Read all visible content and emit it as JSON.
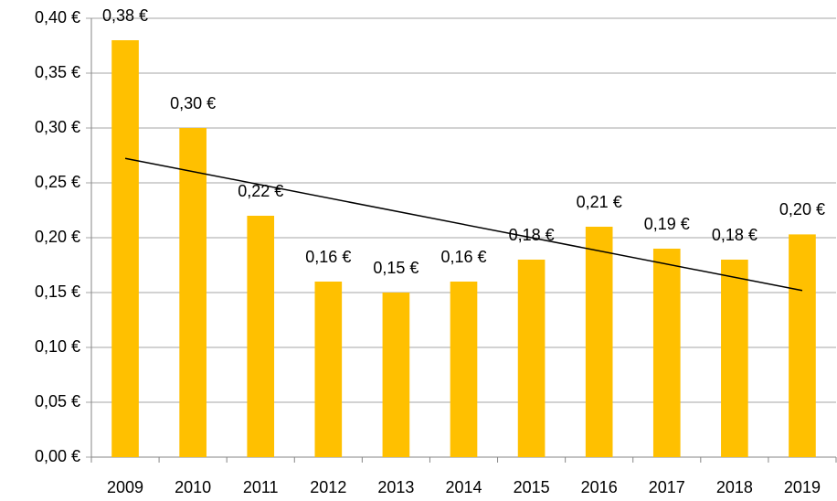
{
  "chart_data": {
    "type": "bar",
    "categories": [
      "2009",
      "2010",
      "2011",
      "2012",
      "2013",
      "2014",
      "2015",
      "2016",
      "2017",
      "2018",
      "2019"
    ],
    "values": [
      0.38,
      0.3,
      0.22,
      0.16,
      0.15,
      0.16,
      0.18,
      0.21,
      0.19,
      0.18,
      0.203
    ],
    "value_labels": [
      "0,38 €",
      "0,30 €",
      "0,22 €",
      "0,16 €",
      "0,15 €",
      "0,16 €",
      "0,18 €",
      "0,21 €",
      "0,19 €",
      "0,18 €",
      "0,20 €"
    ],
    "color": "#ffc000",
    "ylim": [
      0,
      0.4
    ],
    "yticks": [
      {
        "value": 0,
        "label": "0,00 €"
      },
      {
        "value": 0.05,
        "label": "0,05 €"
      },
      {
        "value": 0.1,
        "label": "0,10 €"
      },
      {
        "value": 0.15,
        "label": "0,15 €"
      },
      {
        "value": 0.2,
        "label": "0,20 €"
      },
      {
        "value": 0.25,
        "label": "0,25 €"
      },
      {
        "value": 0.3,
        "label": "0,30 €"
      },
      {
        "value": 0.35,
        "label": "0,35 €"
      },
      {
        "value": 0.4,
        "label": "0,40 €"
      }
    ],
    "grid": true,
    "trendline": "linear",
    "trendline_color": "#000000"
  }
}
